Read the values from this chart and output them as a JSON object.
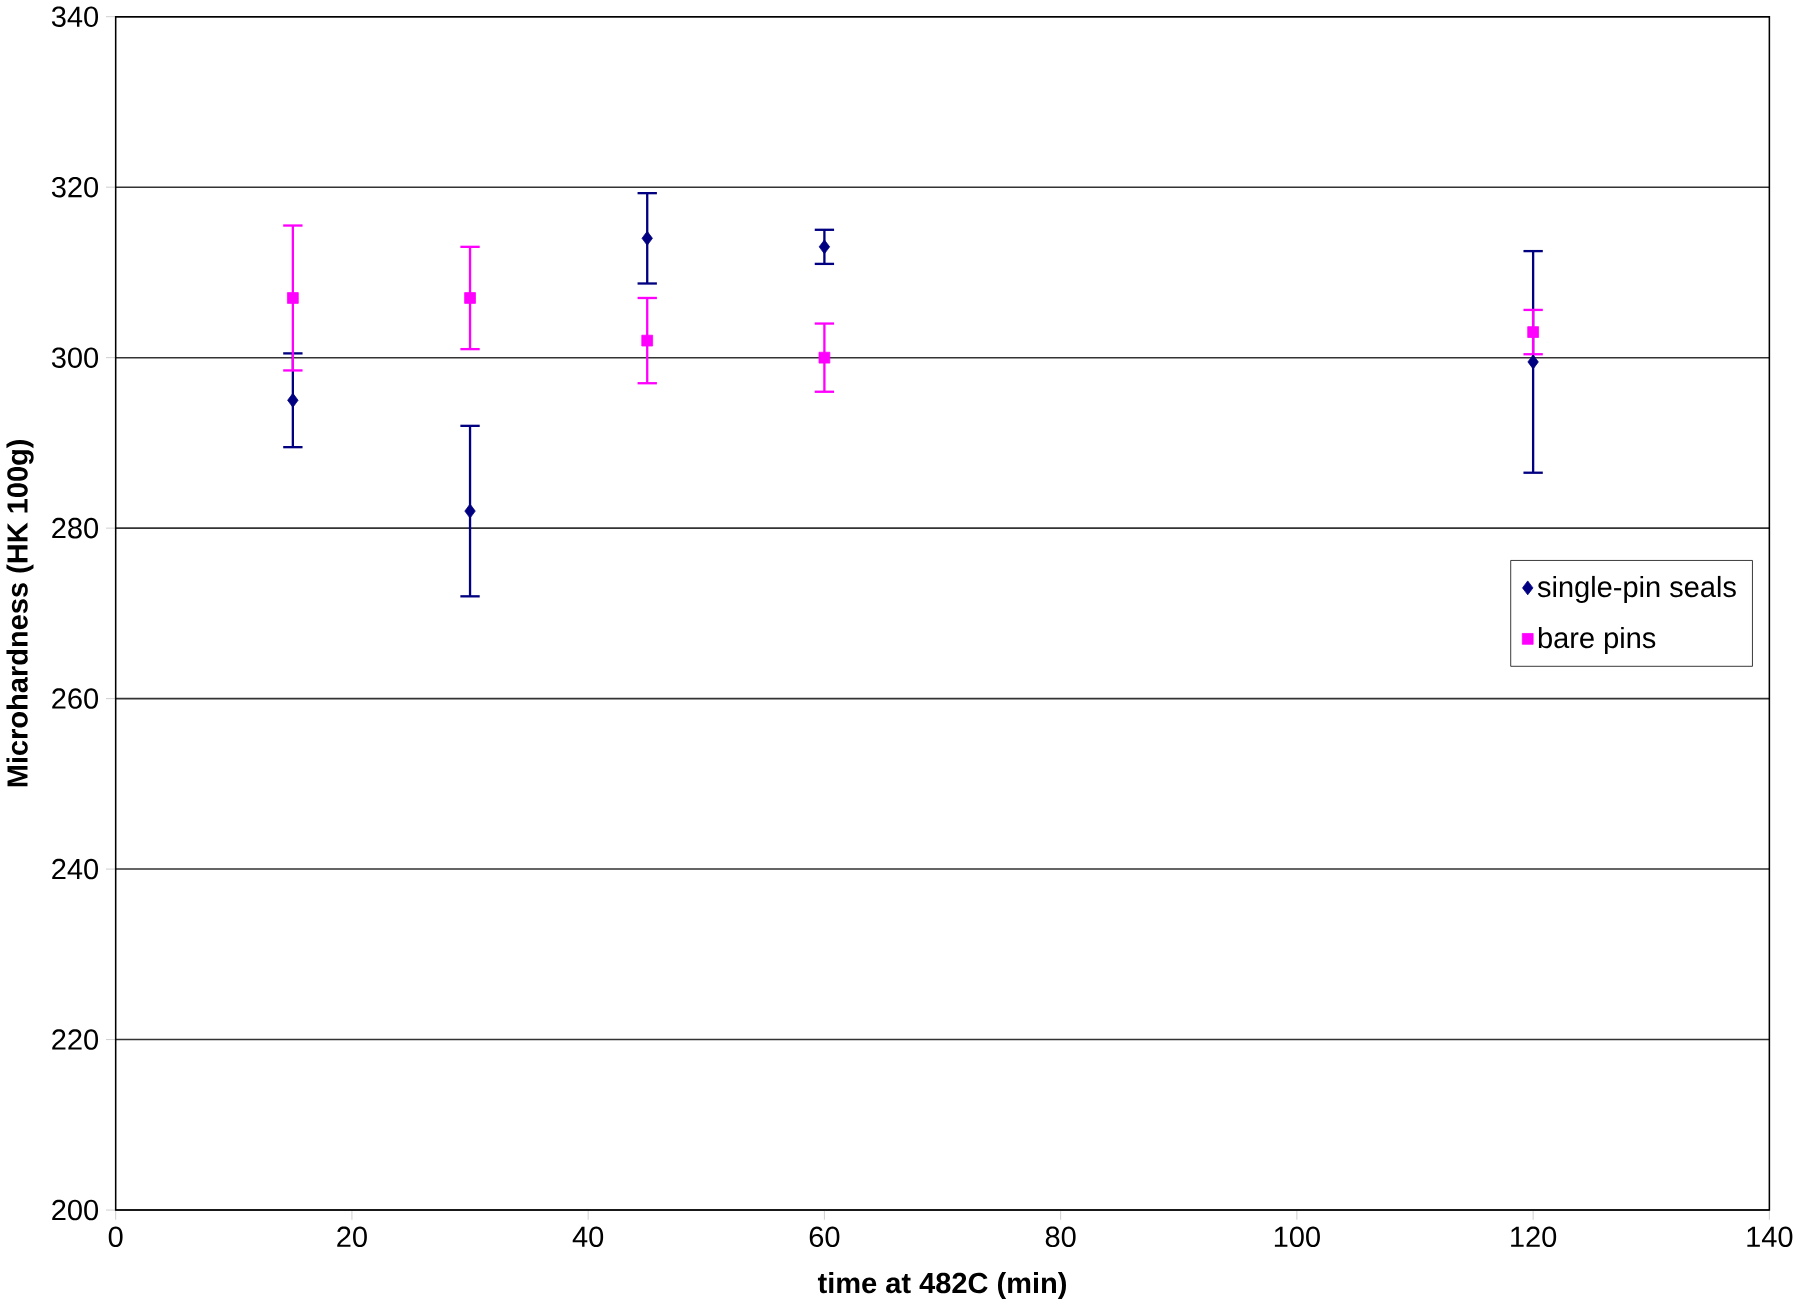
{
  "chart_data": {
    "type": "scatter",
    "xlabel": "time at 482C (min)",
    "ylabel": "Microhardness (HK 100g)",
    "x": [
      15,
      30,
      45,
      60,
      120
    ],
    "series": [
      {
        "name": "single-pin seals",
        "color": "#000080",
        "marker": "diamond",
        "values": [
          295,
          282,
          314,
          313,
          299.5
        ],
        "errors": [
          5.5,
          10,
          5.3,
          2,
          13
        ]
      },
      {
        "name": "bare pins",
        "color": "#ff00ff",
        "marker": "square",
        "values": [
          307,
          307,
          302,
          300,
          303
        ],
        "errors": [
          8.5,
          6,
          5,
          4,
          2.6
        ]
      }
    ],
    "xlim": [
      0,
      140
    ],
    "xticks": [
      0,
      20,
      40,
      60,
      80,
      100,
      120,
      140
    ],
    "ylim": [
      200,
      340
    ],
    "yticks": [
      200,
      220,
      240,
      260,
      280,
      300,
      320,
      340
    ],
    "grid": "y",
    "legend": "right"
  }
}
